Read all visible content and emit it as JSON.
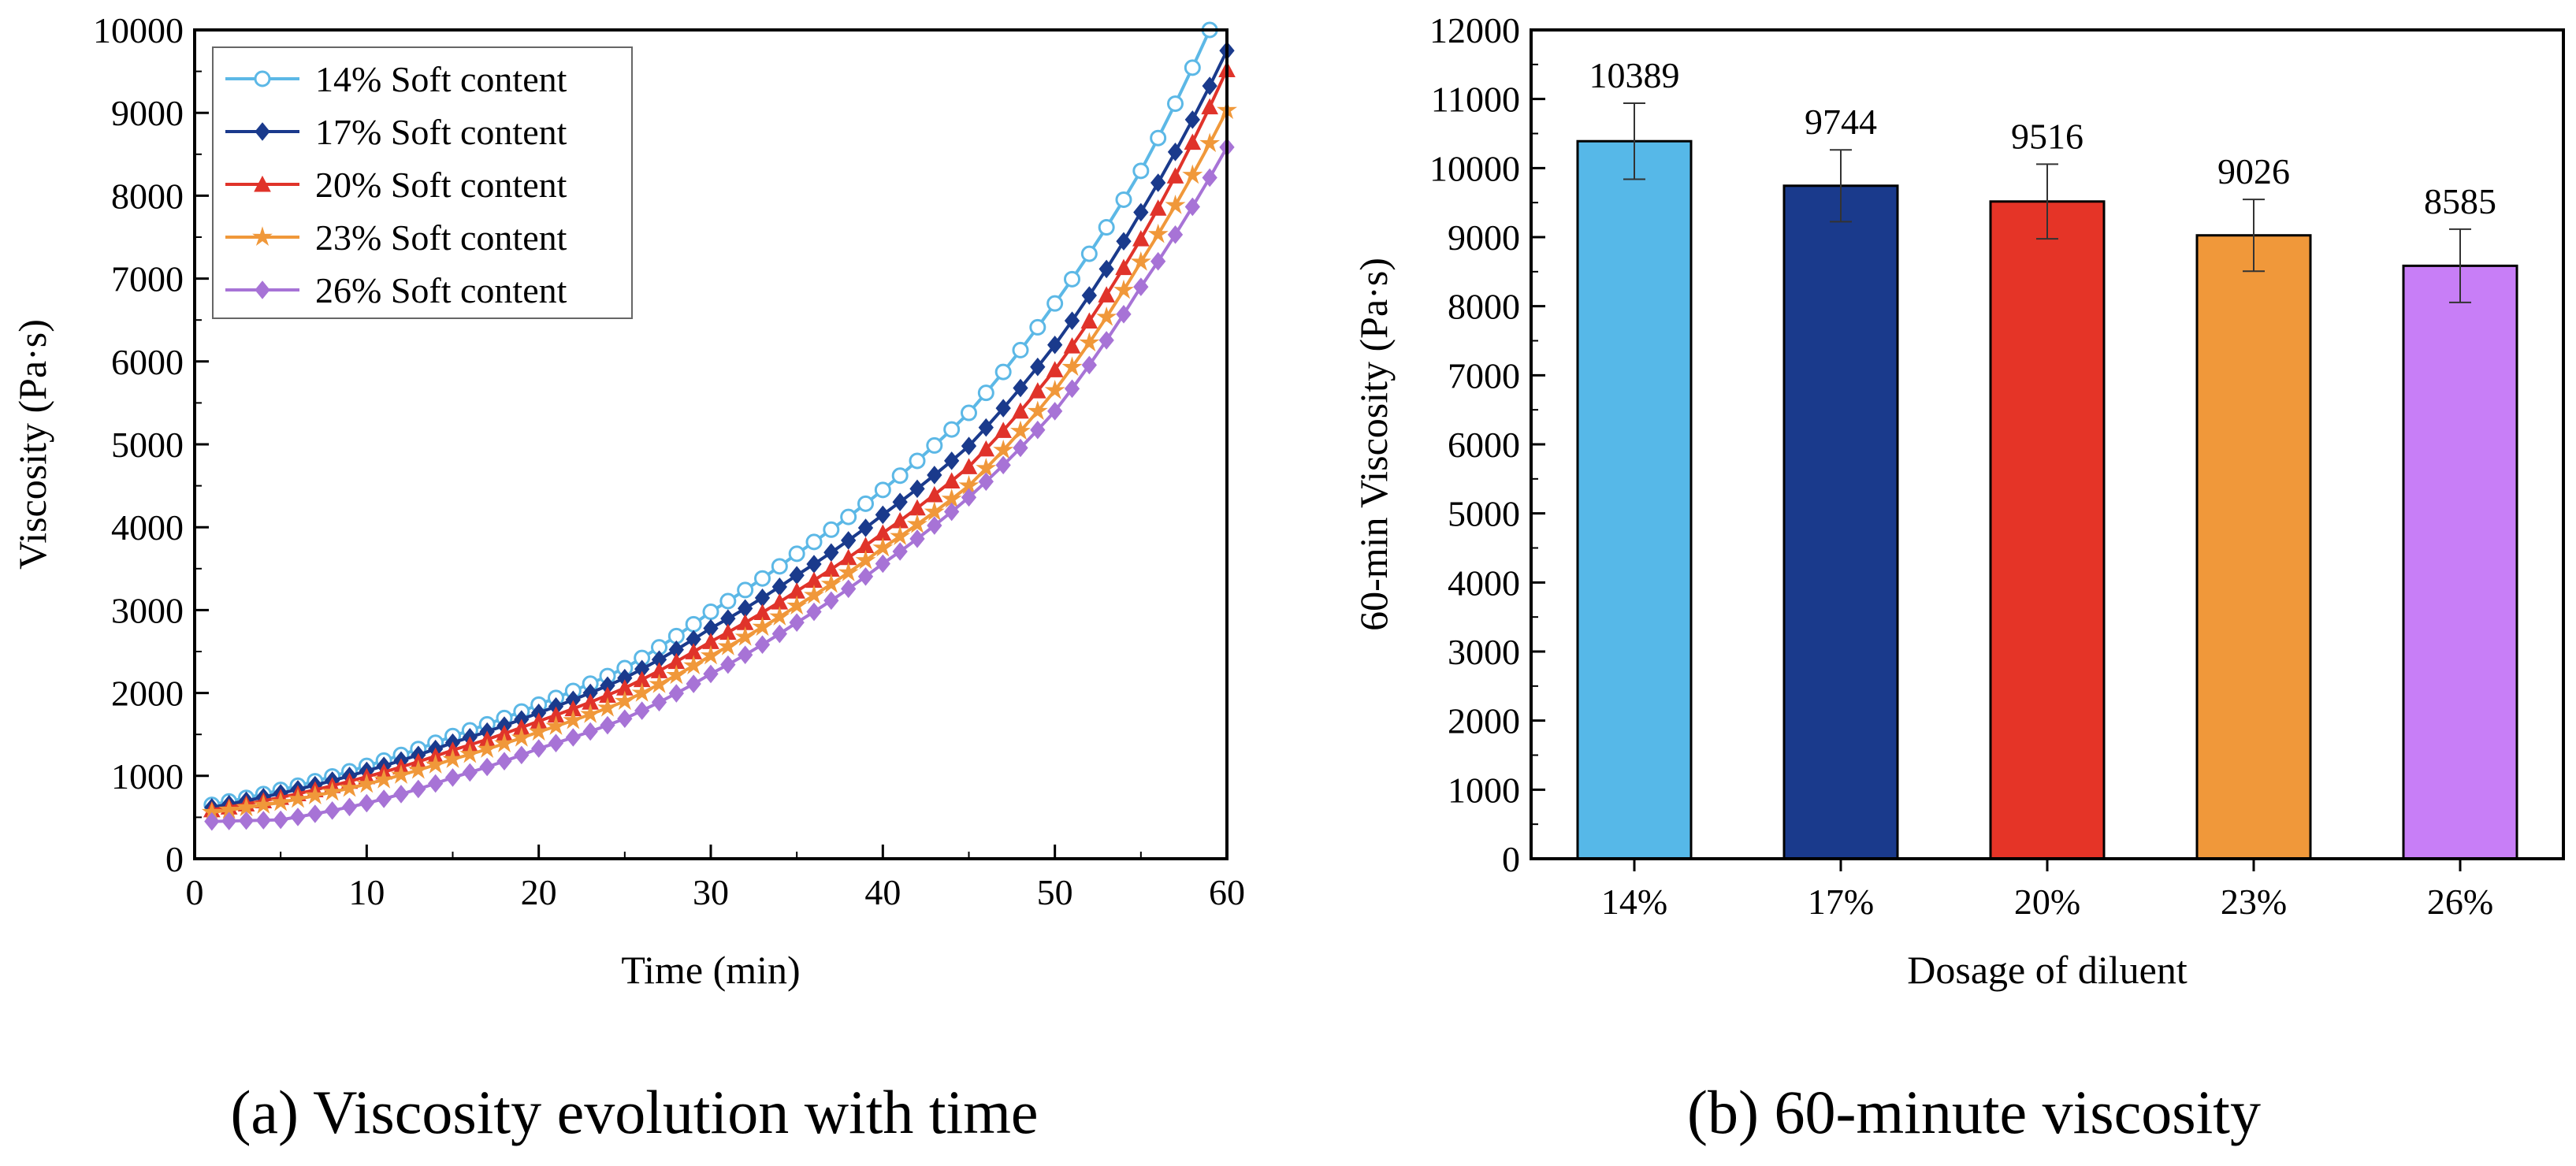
{
  "chart_data": [
    {
      "type": "line",
      "caption": "(a) Viscosity evolution with time",
      "xlabel": "Time (min)",
      "ylabel": "Viscosity (Pa·s)",
      "xlim": [
        0,
        60
      ],
      "ylim": [
        0,
        10000
      ],
      "xticks": [
        0,
        10,
        20,
        30,
        40,
        50,
        60
      ],
      "yticks": [
        0,
        1000,
        2000,
        3000,
        4000,
        5000,
        6000,
        7000,
        8000,
        9000,
        10000
      ],
      "legend_position": "top-left",
      "grid": false,
      "series": [
        {
          "name": "14% Soft content",
          "color": "#5cb8e6",
          "marker": "circle",
          "x": [
            1,
            5,
            10,
            15,
            20,
            25,
            30,
            35,
            40,
            45,
            50,
            55,
            59
          ],
          "y": [
            650,
            830,
            1120,
            1480,
            1860,
            2300,
            2980,
            3680,
            4450,
            5380,
            6700,
            8300,
            10000
          ]
        },
        {
          "name": "17% Soft content",
          "color": "#1a3a8c",
          "marker": "diamond",
          "x": [
            1,
            5,
            10,
            15,
            20,
            25,
            30,
            35,
            40,
            45,
            50,
            55,
            60
          ],
          "y": [
            620,
            790,
            1060,
            1400,
            1760,
            2180,
            2780,
            3420,
            4150,
            4980,
            6200,
            7800,
            9750
          ]
        },
        {
          "name": "20% Soft content",
          "color": "#e0332a",
          "marker": "triangle",
          "x": [
            1,
            5,
            10,
            15,
            20,
            25,
            30,
            35,
            40,
            45,
            50,
            55,
            60
          ],
          "y": [
            590,
            740,
            990,
            1310,
            1660,
            2060,
            2620,
            3230,
            3930,
            4730,
            5900,
            7480,
            9520
          ]
        },
        {
          "name": "23% Soft content",
          "color": "#f0983a",
          "marker": "star",
          "x": [
            1,
            5,
            10,
            15,
            20,
            25,
            30,
            35,
            40,
            45,
            50,
            55,
            60
          ],
          "y": [
            560,
            680,
            900,
            1200,
            1530,
            1900,
            2450,
            3050,
            3750,
            4500,
            5650,
            7200,
            9030
          ]
        },
        {
          "name": "26% Soft content",
          "color": "#a773d6",
          "marker": "diamond",
          "x": [
            1,
            5,
            10,
            15,
            20,
            25,
            30,
            35,
            40,
            45,
            50,
            55,
            60
          ],
          "y": [
            450,
            470,
            670,
            980,
            1330,
            1690,
            2230,
            2850,
            3560,
            4360,
            5400,
            6900,
            8585
          ]
        }
      ]
    },
    {
      "type": "bar",
      "caption": "(b) 60-minute viscosity",
      "xlabel": "Dosage of diluent",
      "ylabel": "60-min Viscosity (Pa·s)",
      "ylim": [
        0,
        12000
      ],
      "yticks": [
        0,
        1000,
        2000,
        3000,
        4000,
        5000,
        6000,
        7000,
        8000,
        9000,
        10000,
        11000,
        12000
      ],
      "grid": false,
      "categories": [
        "14%",
        "17%",
        "20%",
        "23%",
        "26%"
      ],
      "values": [
        10389,
        9744,
        9516,
        9026,
        8585
      ],
      "errors": [
        550,
        520,
        540,
        520,
        530
      ],
      "colors": [
        "#56b8e8",
        "#1a3a8c",
        "#e53427",
        "#f0983a",
        "#c87ef7"
      ]
    }
  ]
}
